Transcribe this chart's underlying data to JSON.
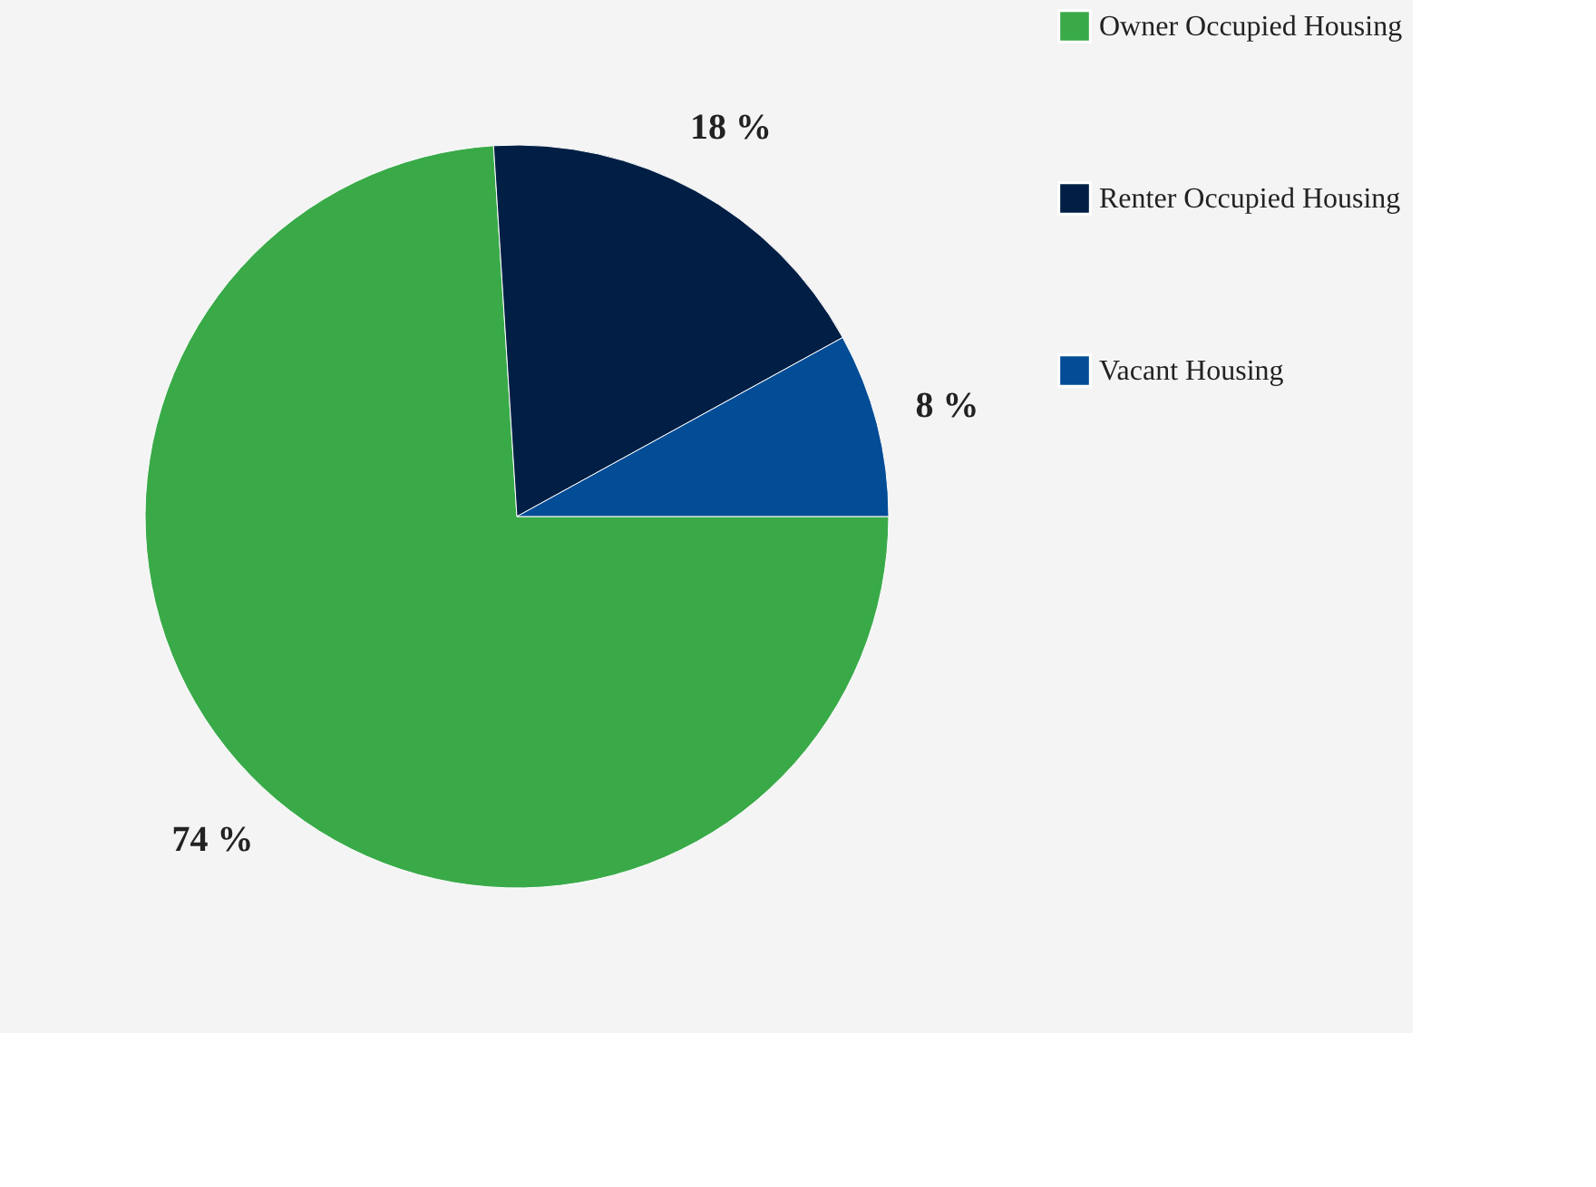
{
  "chart_data": {
    "type": "pie",
    "categories": [
      "Owner Occupied Housing",
      "Renter Occupied Housing",
      "Vacant Housing"
    ],
    "values": [
      74,
      18,
      8
    ],
    "colors": [
      "#3aaa49",
      "#011f44",
      "#034c96"
    ],
    "value_labels": [
      "74 %",
      "18 %",
      "8 %"
    ],
    "legend": "right"
  }
}
